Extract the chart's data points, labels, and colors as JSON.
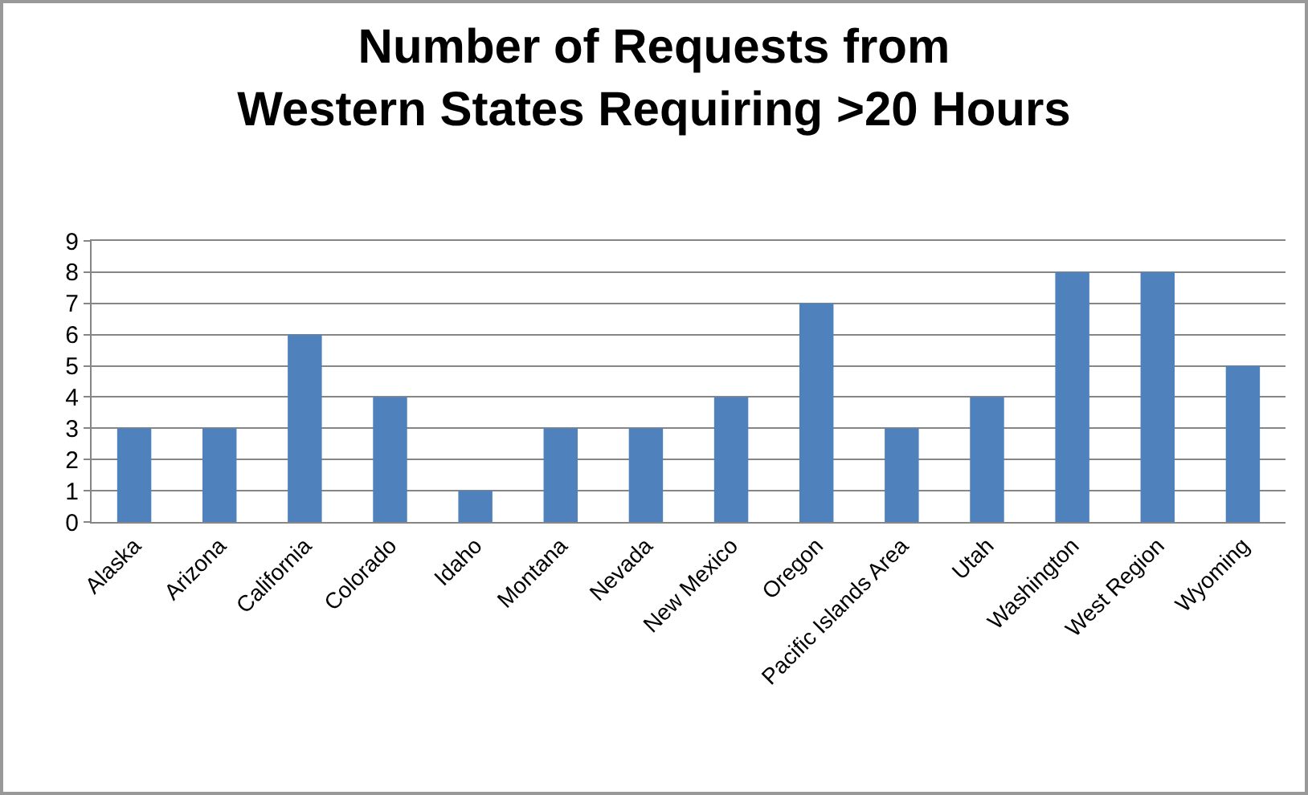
{
  "chart_data": {
    "type": "bar",
    "title": "Number of Requests from\nWestern States Requiring >20 Hours",
    "categories": [
      "Alaska",
      "Arizona",
      "California",
      "Colorado",
      "Idaho",
      "Montana",
      "Nevada",
      "New Mexico",
      "Oregon",
      "Pacific Islands Area",
      "Utah",
      "Washington",
      "West Region",
      "Wyoming"
    ],
    "values": [
      3,
      3,
      6,
      4,
      1,
      3,
      3,
      4,
      7,
      3,
      4,
      8,
      8,
      5
    ],
    "color": "#4f81bd",
    "ylim": [
      0,
      9
    ],
    "yticks": [
      0,
      1,
      2,
      3,
      4,
      5,
      6,
      7,
      8,
      9
    ],
    "grid": "y"
  }
}
